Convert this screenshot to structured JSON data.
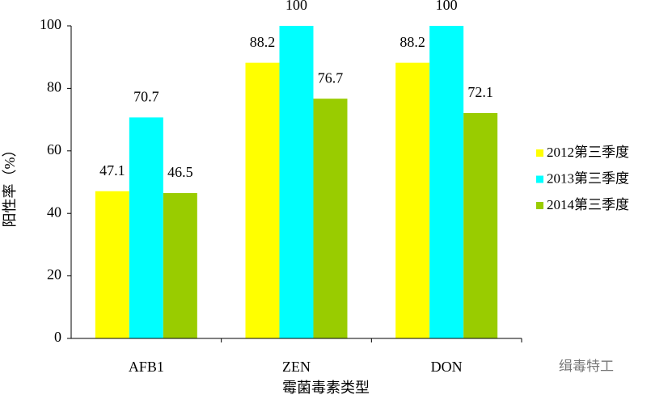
{
  "chart_data": {
    "type": "bar",
    "x_label": "霉菌毒素类型",
    "y_label": "阳性率（%）",
    "categories": [
      "AFB1",
      "ZEN",
      "DON"
    ],
    "series": [
      {
        "name": "2012第三季度",
        "color": "#ffff00",
        "values": [
          47.1,
          88.2,
          88.2
        ]
      },
      {
        "name": "2013第三季度",
        "color": "#00ffff",
        "values": [
          70.7,
          100,
          100
        ]
      },
      {
        "name": "2014第三季度",
        "color": "#99cc00",
        "values": [
          46.5,
          76.7,
          72.1
        ]
      }
    ],
    "ylim": [
      0,
      100
    ],
    "yticks": [
      0,
      20,
      40,
      60,
      80,
      100
    ],
    "grid": false,
    "legend": "right",
    "watermark": "缉毒特工"
  }
}
